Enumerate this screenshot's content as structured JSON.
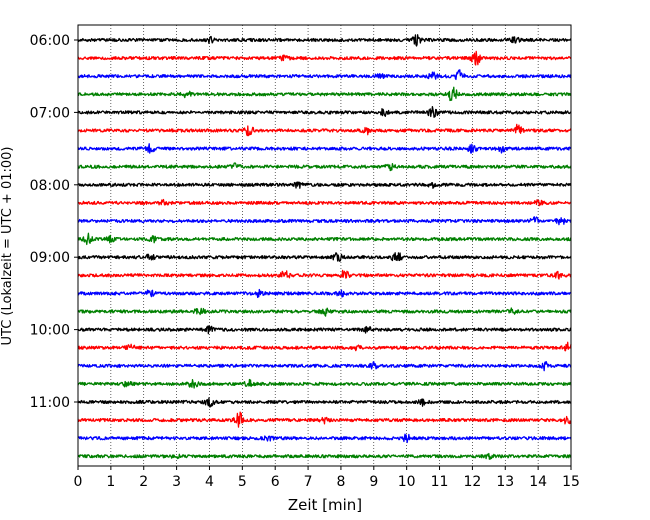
{
  "chart_data": {
    "type": "line",
    "title": "",
    "xlabel": "Zeit  [min]",
    "ylabel": "UTC (Lokalzeit = UTC + 01:00)",
    "xlim": [
      0,
      15
    ],
    "x_ticks": [
      "0",
      "1",
      "2",
      "3",
      "4",
      "5",
      "6",
      "7",
      "8",
      "9",
      "10",
      "11",
      "12",
      "13",
      "14",
      "15"
    ],
    "y_tick_labels": [
      "06:00",
      "07:00",
      "08:00",
      "09:00",
      "10:00",
      "11:00"
    ],
    "y_tick_rows": [
      0,
      4,
      8,
      12,
      16,
      20
    ],
    "trace_interval_minutes": 15,
    "grid": "vertical dotted",
    "colors": [
      "#000000",
      "#ff0000",
      "#0000ff",
      "#008000"
    ],
    "traces": [
      {
        "start": "06:00",
        "color": "#000000",
        "events": [
          {
            "t": 4.0,
            "amp": 2.5
          },
          {
            "t": 10.3,
            "amp": 4.5
          },
          {
            "t": 13.3,
            "amp": 2.5
          }
        ]
      },
      {
        "start": "06:15",
        "color": "#ff0000",
        "events": [
          {
            "t": 6.3,
            "amp": 2.5
          },
          {
            "t": 12.1,
            "amp": 7.0
          }
        ]
      },
      {
        "start": "06:30",
        "color": "#0000ff",
        "events": [
          {
            "t": 10.8,
            "amp": 3.0
          },
          {
            "t": 11.6,
            "amp": 5.5
          },
          {
            "t": 9.2,
            "amp": 2.5
          }
        ]
      },
      {
        "start": "06:45",
        "color": "#008000",
        "events": [
          {
            "t": 3.3,
            "amp": 3.0
          },
          {
            "t": 11.4,
            "amp": 7.5
          }
        ]
      },
      {
        "start": "07:00",
        "color": "#000000",
        "events": [
          {
            "t": 9.3,
            "amp": 3.0
          },
          {
            "t": 10.8,
            "amp": 6.0
          }
        ]
      },
      {
        "start": "07:15",
        "color": "#ff0000",
        "events": [
          {
            "t": 5.2,
            "amp": 5.0
          },
          {
            "t": 8.8,
            "amp": 3.0
          },
          {
            "t": 13.4,
            "amp": 6.0
          }
        ]
      },
      {
        "start": "07:30",
        "color": "#0000ff",
        "events": [
          {
            "t": 2.2,
            "amp": 4.0
          },
          {
            "t": 12.0,
            "amp": 3.5
          },
          {
            "t": 12.9,
            "amp": 3.0
          }
        ]
      },
      {
        "start": "07:45",
        "color": "#008000",
        "events": [
          {
            "t": 4.8,
            "amp": 2.5
          },
          {
            "t": 9.5,
            "amp": 2.5
          }
        ]
      },
      {
        "start": "08:00",
        "color": "#000000",
        "events": [
          {
            "t": 6.7,
            "amp": 2.5
          },
          {
            "t": 10.8,
            "amp": 2.5
          }
        ]
      },
      {
        "start": "08:15",
        "color": "#ff0000",
        "events": [
          {
            "t": 2.6,
            "amp": 2.0
          },
          {
            "t": 14.0,
            "amp": 2.5
          }
        ]
      },
      {
        "start": "08:30",
        "color": "#0000ff",
        "events": [
          {
            "t": 13.9,
            "amp": 3.0
          },
          {
            "t": 14.7,
            "amp": 4.0
          }
        ]
      },
      {
        "start": "08:45",
        "color": "#008000",
        "events": [
          {
            "t": 0.3,
            "amp": 4.5
          },
          {
            "t": 1.0,
            "amp": 3.0
          },
          {
            "t": 2.3,
            "amp": 2.5
          }
        ]
      },
      {
        "start": "09:00",
        "color": "#000000",
        "events": [
          {
            "t": 7.9,
            "amp": 4.0
          },
          {
            "t": 9.7,
            "amp": 6.5
          },
          {
            "t": 2.2,
            "amp": 2.5
          }
        ]
      },
      {
        "start": "09:15",
        "color": "#ff0000",
        "events": [
          {
            "t": 6.3,
            "amp": 4.0
          },
          {
            "t": 8.1,
            "amp": 5.5
          },
          {
            "t": 14.6,
            "amp": 2.5
          }
        ]
      },
      {
        "start": "09:30",
        "color": "#0000ff",
        "events": [
          {
            "t": 2.2,
            "amp": 3.0
          },
          {
            "t": 5.5,
            "amp": 3.0
          },
          {
            "t": 8.0,
            "amp": 2.5
          }
        ]
      },
      {
        "start": "09:45",
        "color": "#008000",
        "events": [
          {
            "t": 3.7,
            "amp": 4.5
          },
          {
            "t": 7.5,
            "amp": 3.5
          },
          {
            "t": 13.2,
            "amp": 2.5
          }
        ]
      },
      {
        "start": "10:00",
        "color": "#000000",
        "events": [
          {
            "t": 4.0,
            "amp": 3.0
          },
          {
            "t": 8.8,
            "amp": 2.5
          }
        ]
      },
      {
        "start": "10:15",
        "color": "#ff0000",
        "events": [
          {
            "t": 1.6,
            "amp": 2.5
          },
          {
            "t": 8.5,
            "amp": 2.5
          },
          {
            "t": 14.9,
            "amp": 4.0
          }
        ]
      },
      {
        "start": "10:30",
        "color": "#0000ff",
        "events": [
          {
            "t": 9.0,
            "amp": 2.5
          },
          {
            "t": 14.2,
            "amp": 3.5
          }
        ]
      },
      {
        "start": "10:45",
        "color": "#008000",
        "events": [
          {
            "t": 3.5,
            "amp": 3.5
          },
          {
            "t": 5.2,
            "amp": 3.0
          },
          {
            "t": 1.5,
            "amp": 2.5
          }
        ]
      },
      {
        "start": "11:00",
        "color": "#000000",
        "events": [
          {
            "t": 4.0,
            "amp": 4.0
          },
          {
            "t": 10.5,
            "amp": 3.0
          }
        ]
      },
      {
        "start": "11:15",
        "color": "#ff0000",
        "events": [
          {
            "t": 4.9,
            "amp": 7.5
          },
          {
            "t": 14.9,
            "amp": 4.0
          },
          {
            "t": 7.5,
            "amp": 2.5
          }
        ]
      },
      {
        "start": "11:30",
        "color": "#0000ff",
        "events": [
          {
            "t": 10.0,
            "amp": 3.5
          },
          {
            "t": 5.8,
            "amp": 2.0
          }
        ]
      },
      {
        "start": "11:45",
        "color": "#008000",
        "events": [
          {
            "t": 3.0,
            "amp": 2.0
          },
          {
            "t": 12.5,
            "amp": 2.0
          }
        ]
      }
    ]
  }
}
